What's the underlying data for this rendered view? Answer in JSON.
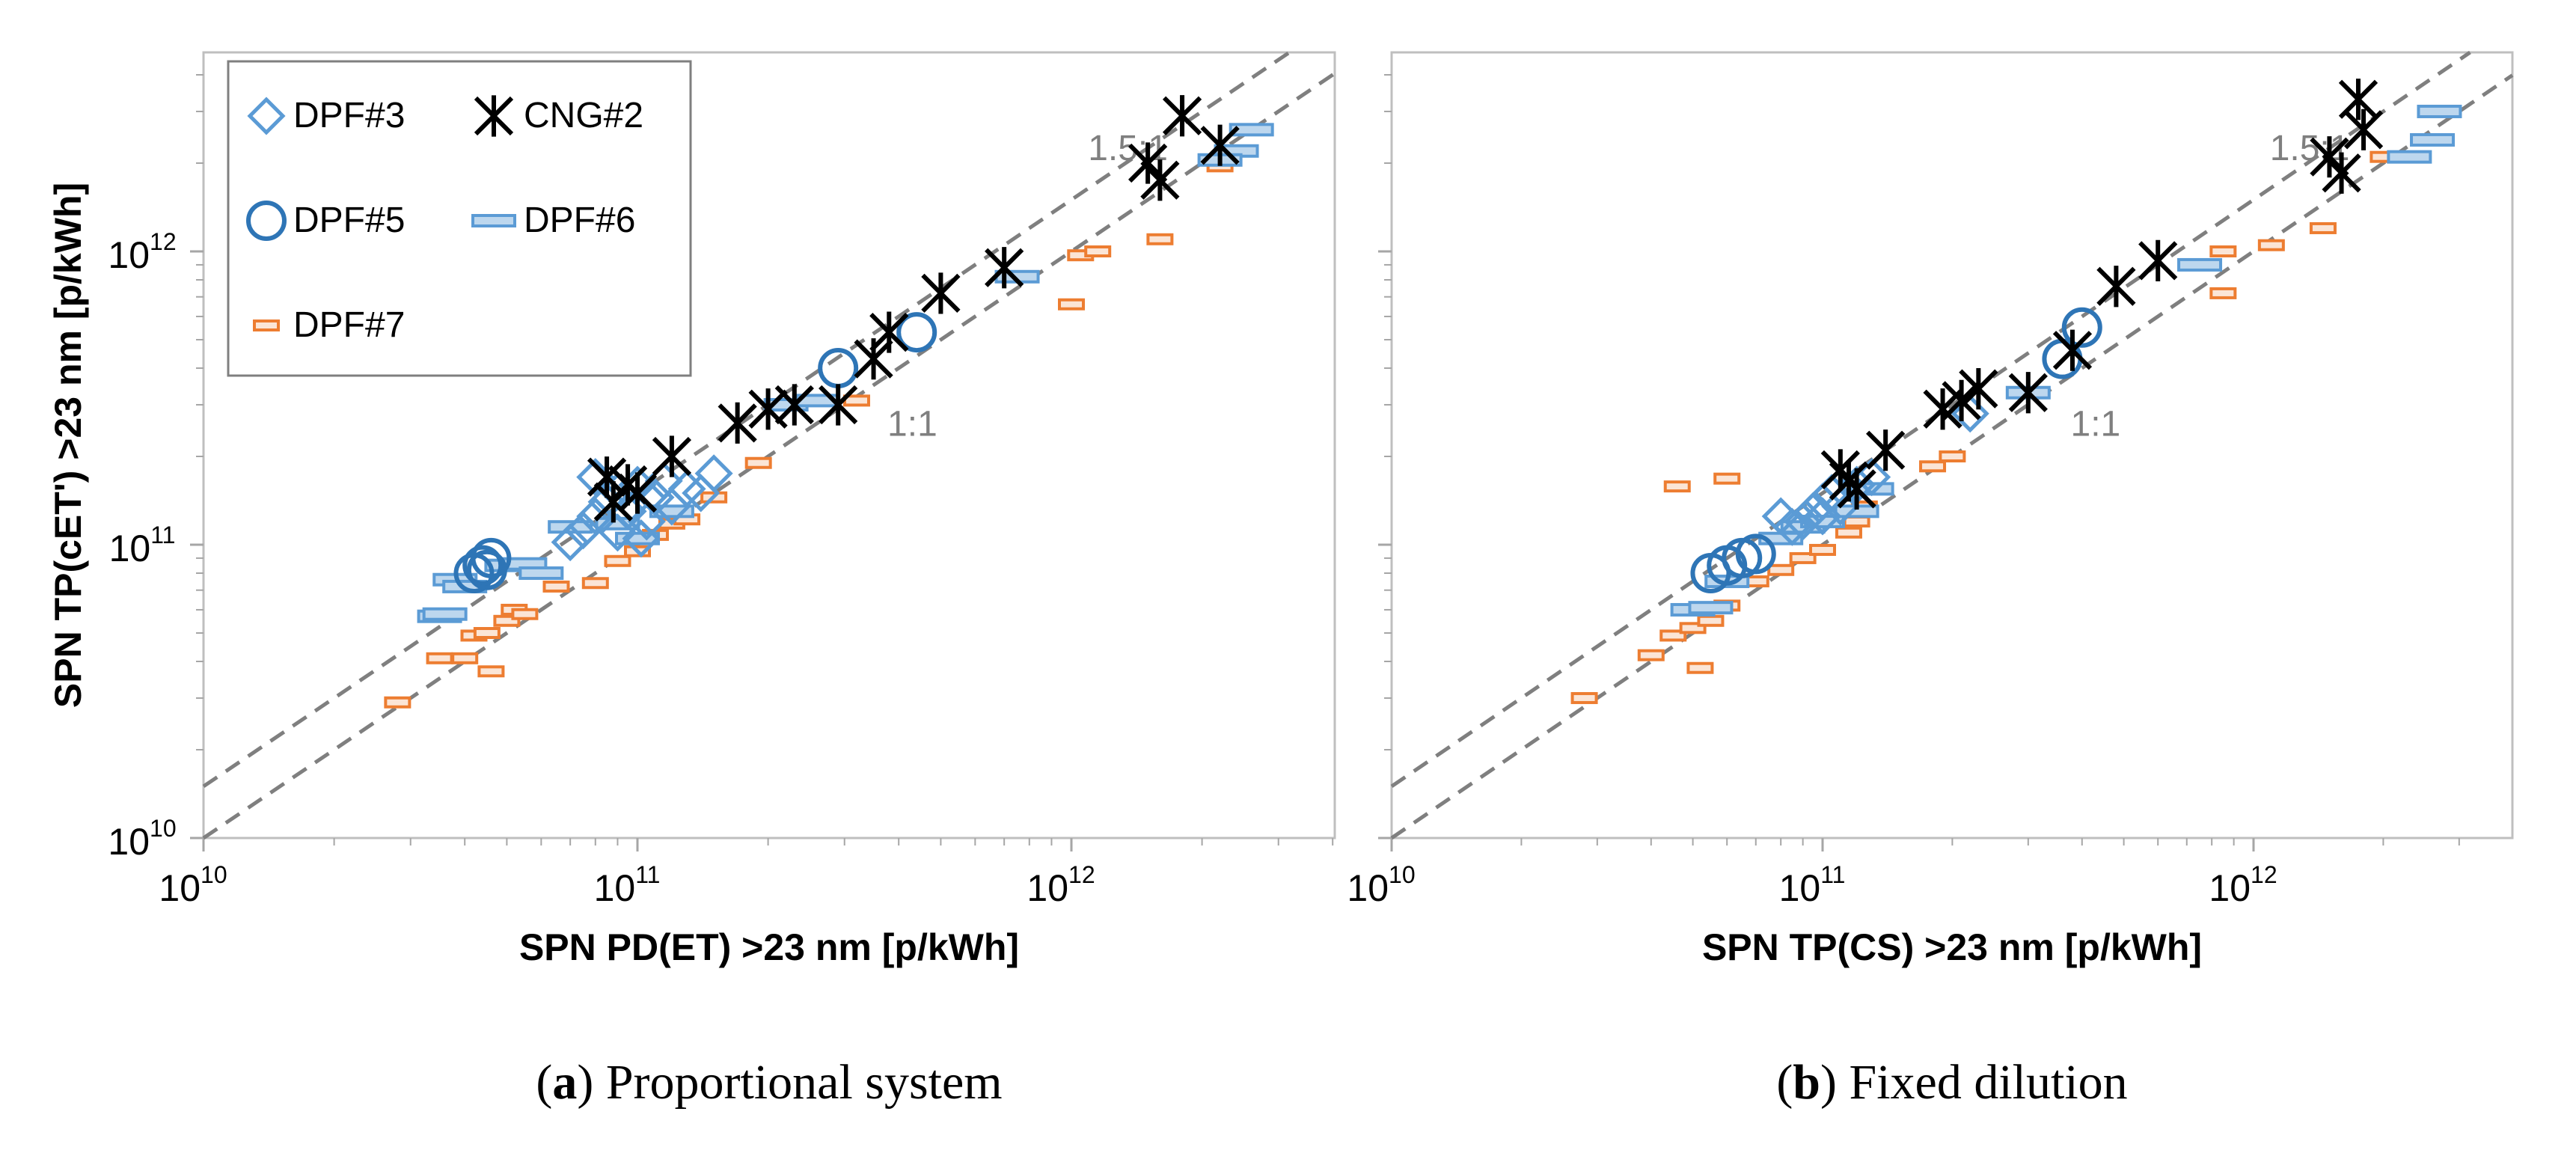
{
  "legend": {
    "items": [
      {
        "label": "DPF#3",
        "series": "DPF#3"
      },
      {
        "label": "CNG#2",
        "series": "CNG#2"
      },
      {
        "label": "DPF#5",
        "series": "DPF#5"
      },
      {
        "label": "DPF#6",
        "series": "DPF#6"
      },
      {
        "label": "DPF#7",
        "series": "DPF#7"
      }
    ]
  },
  "colors": {
    "DPF#3": "#5b9bd5",
    "DPF#5": "#2e75b6",
    "DPF#6": "#5b9bd5",
    "DPF#7": "#ed7d31",
    "CNG#2": "#000000",
    "reference": "#7f7f7f"
  },
  "reference_labels": {
    "r15": "1.5:1",
    "r1": "1:1"
  },
  "tick_base": "10",
  "chart_data": [
    {
      "type": "scatter",
      "panel": "a",
      "caption_letter": "a",
      "caption_text": "Proportional system",
      "xlabel": "SPN PD(ET) >23 nm [p/kWh]",
      "ylabel": "SPN TP(cET') >23 nm [p/kWh]",
      "xscale": "log",
      "yscale": "log",
      "xlim": [
        10000000000.0,
        4000000000000.0
      ],
      "ylim": [
        10000000000.0,
        5000000000000.0
      ],
      "xticks": [
        {
          "exp": "10",
          "value": 10000000000.0
        },
        {
          "exp": "11",
          "value": 100000000000.0
        },
        {
          "exp": "12",
          "value": 1000000000000.0
        }
      ],
      "yticks": [
        {
          "exp": "10",
          "value": 10000000000.0
        },
        {
          "exp": "11",
          "value": 100000000000.0
        },
        {
          "exp": "12",
          "value": 1000000000000.0
        }
      ],
      "reference_lines": [
        {
          "label": "1.5:1",
          "ratio": 1.5
        },
        {
          "label": "1:1",
          "ratio": 1.0
        }
      ],
      "series": [
        {
          "name": "DPF#3",
          "marker": "diamond",
          "points": [
            [
              70000000000.0,
              102000000000.0
            ],
            [
              75000000000.0,
              112000000000.0
            ],
            [
              80000000000.0,
              125000000000.0
            ],
            [
              85000000000.0,
              140000000000.0
            ],
            [
              90000000000.0,
              110000000000.0
            ],
            [
              95000000000.0,
              130000000000.0
            ],
            [
              100000000000.0,
              160000000000.0
            ],
            [
              105000000000.0,
              120000000000.0
            ],
            [
              110000000000.0,
              145000000000.0
            ],
            [
              120000000000.0,
              135000000000.0
            ],
            [
              130000000000.0,
              155000000000.0
            ],
            [
              140000000000.0,
              150000000000.0
            ],
            [
              150000000000.0,
              175000000000.0
            ],
            [
              80000000000.0,
              170000000000.0
            ],
            [
              90000000000.0,
              152000000000.0
            ],
            [
              102000000000.0,
              105000000000.0
            ],
            [
              115000000000.0,
              165000000000.0
            ]
          ]
        },
        {
          "name": "DPF#5",
          "marker": "circle",
          "points": [
            [
              42000000000.0,
              80000000000.0
            ],
            [
              44000000000.0,
              85000000000.0
            ],
            [
              46000000000.0,
              90000000000.0
            ],
            [
              45000000000.0,
              82000000000.0
            ],
            [
              290000000000.0,
              400000000000.0
            ],
            [
              440000000000.0,
              530000000000.0
            ]
          ]
        },
        {
          "name": "DPF#6",
          "marker": "dash",
          "points": [
            [
              35000000000.0,
              57000000000.0
            ],
            [
              36000000000.0,
              58000000000.0
            ],
            [
              38000000000.0,
              76000000000.0
            ],
            [
              40000000000.0,
              72000000000.0
            ],
            [
              50000000000.0,
              85000000000.0
            ],
            [
              55000000000.0,
              86000000000.0
            ],
            [
              60000000000.0,
              80000000000.0
            ],
            [
              70000000000.0,
              115000000000.0
            ],
            [
              90000000000.0,
              118000000000.0
            ],
            [
              100000000000.0,
              105000000000.0
            ],
            [
              120000000000.0,
              130000000000.0
            ],
            [
              220000000000.0,
              300000000000.0
            ],
            [
              260000000000.0,
              310000000000.0
            ],
            [
              750000000000.0,
              820000000000.0
            ],
            [
              2400000000000.0,
              2200000000000.0
            ],
            [
              2600000000000.0,
              2600000000000.0
            ],
            [
              2200000000000.0,
              2050000000000.0
            ]
          ]
        },
        {
          "name": "DPF#7",
          "marker": "bar",
          "points": [
            [
              28000000000.0,
              29000000000.0
            ],
            [
              35000000000.0,
              41000000000.0
            ],
            [
              40000000000.0,
              41000000000.0
            ],
            [
              42000000000.0,
              49000000000.0
            ],
            [
              45000000000.0,
              50000000000.0
            ],
            [
              46000000000.0,
              37000000000.0
            ],
            [
              50000000000.0,
              55000000000.0
            ],
            [
              52000000000.0,
              60000000000.0
            ],
            [
              55000000000.0,
              58000000000.0
            ],
            [
              65000000000.0,
              72000000000.0
            ],
            [
              80000000000.0,
              74000000000.0
            ],
            [
              90000000000.0,
              88000000000.0
            ],
            [
              100000000000.0,
              95000000000.0
            ],
            [
              110000000000.0,
              108000000000.0
            ],
            [
              120000000000.0,
              118000000000.0
            ],
            [
              130000000000.0,
              122000000000.0
            ],
            [
              150000000000.0,
              145000000000.0
            ],
            [
              190000000000.0,
              190000000000.0
            ],
            [
              320000000000.0,
              310000000000.0
            ],
            [
              1000000000000.0,
              660000000000.0
            ],
            [
              1050000000000.0,
              970000000000.0
            ],
            [
              1150000000000.0,
              1000000000000.0
            ],
            [
              1600000000000.0,
              1100000000000.0
            ],
            [
              2200000000000.0,
              1950000000000.0
            ]
          ]
        },
        {
          "name": "CNG#2",
          "marker": "asterisk",
          "points": [
            [
              85000000000.0,
              170000000000.0
            ],
            [
              88000000000.0,
              140000000000.0
            ],
            [
              95000000000.0,
              160000000000.0
            ],
            [
              100000000000.0,
              150000000000.0
            ],
            [
              120000000000.0,
              200000000000.0
            ],
            [
              170000000000.0,
              260000000000.0
            ],
            [
              200000000000.0,
              290000000000.0
            ],
            [
              230000000000.0,
              300000000000.0
            ],
            [
              290000000000.0,
              300000000000.0
            ],
            [
              350000000000.0,
              430000000000.0
            ],
            [
              380000000000.0,
              530000000000.0
            ],
            [
              500000000000.0,
              720000000000.0
            ],
            [
              700000000000.0,
              880000000000.0
            ],
            [
              1500000000000.0,
              2000000000000.0
            ],
            [
              1600000000000.0,
              1750000000000.0
            ],
            [
              1800000000000.0,
              2900000000000.0
            ],
            [
              2200000000000.0,
              2300000000000.0
            ]
          ]
        }
      ]
    },
    {
      "type": "scatter",
      "panel": "b",
      "caption_letter": "b",
      "caption_text": "Fixed dilution",
      "xlabel": "SPN TP(CS) >23 nm [p/kWh]",
      "ylabel": "",
      "xscale": "log",
      "yscale": "log",
      "xlim": [
        10000000000.0,
        4000000000000.0
      ],
      "ylim": [
        10000000000.0,
        5000000000000.0
      ],
      "xticks": [
        {
          "exp": "10",
          "value": 10000000000.0
        },
        {
          "exp": "11",
          "value": 100000000000.0
        },
        {
          "exp": "12",
          "value": 1000000000000.0
        }
      ],
      "yticks": [],
      "reference_lines": [
        {
          "label": "1.5:1",
          "ratio": 1.5
        },
        {
          "label": "1:1",
          "ratio": 1.0
        }
      ],
      "series": [
        {
          "name": "DPF#3",
          "marker": "diamond",
          "points": [
            [
              80000000000.0,
              125000000000.0
            ],
            [
              85000000000.0,
              115000000000.0
            ],
            [
              90000000000.0,
              120000000000.0
            ],
            [
              95000000000.0,
              130000000000.0
            ],
            [
              100000000000.0,
              140000000000.0
            ],
            [
              105000000000.0,
              150000000000.0
            ],
            [
              110000000000.0,
              135000000000.0
            ],
            [
              120000000000.0,
              160000000000.0
            ],
            [
              130000000000.0,
              170000000000.0
            ],
            [
              220000000000.0,
              280000000000.0
            ],
            [
              100000000000.0,
              125000000000.0
            ]
          ]
        },
        {
          "name": "DPF#5",
          "marker": "circle",
          "points": [
            [
              55000000000.0,
              80000000000.0
            ],
            [
              60000000000.0,
              85000000000.0
            ],
            [
              65000000000.0,
              90000000000.0
            ],
            [
              70000000000.0,
              93000000000.0
            ],
            [
              360000000000.0,
              430000000000.0
            ],
            [
              400000000000.0,
              550000000000.0
            ]
          ]
        },
        {
          "name": "DPF#6",
          "marker": "dash",
          "points": [
            [
              50000000000.0,
              60000000000.0
            ],
            [
              55000000000.0,
              61000000000.0
            ],
            [
              60000000000.0,
              75000000000.0
            ],
            [
              80000000000.0,
              105000000000.0
            ],
            [
              90000000000.0,
              115000000000.0
            ],
            [
              100000000000.0,
              120000000000.0
            ],
            [
              120000000000.0,
              130000000000.0
            ],
            [
              130000000000.0,
              155000000000.0
            ],
            [
              300000000000.0,
              330000000000.0
            ],
            [
              750000000000.0,
              900000000000.0
            ],
            [
              2300000000000.0,
              2100000000000.0
            ],
            [
              2600000000000.0,
              2400000000000.0
            ],
            [
              2700000000000.0,
              3000000000000.0
            ]
          ]
        },
        {
          "name": "DPF#7",
          "marker": "bar",
          "points": [
            [
              28000000000.0,
              30000000000.0
            ],
            [
              40000000000.0,
              42000000000.0
            ],
            [
              45000000000.0,
              49000000000.0
            ],
            [
              50000000000.0,
              52000000000.0
            ],
            [
              52000000000.0,
              38000000000.0
            ],
            [
              55000000000.0,
              55000000000.0
            ],
            [
              60000000000.0,
              62000000000.0
            ],
            [
              46000000000.0,
              158000000000.0
            ],
            [
              60000000000.0,
              168000000000.0
            ],
            [
              70000000000.0,
              75000000000.0
            ],
            [
              80000000000.0,
              82000000000.0
            ],
            [
              90000000000.0,
              90000000000.0
            ],
            [
              100000000000.0,
              96000000000.0
            ],
            [
              115000000000.0,
              110000000000.0
            ],
            [
              120000000000.0,
              120000000000.0
            ],
            [
              125000000000.0,
              135000000000.0
            ],
            [
              180000000000.0,
              185000000000.0
            ],
            [
              200000000000.0,
              200000000000.0
            ],
            [
              850000000000.0,
              720000000000.0
            ],
            [
              850000000000.0,
              1000000000000.0
            ],
            [
              1100000000000.0,
              1050000000000.0
            ],
            [
              1450000000000.0,
              1200000000000.0
            ],
            [
              2000000000000.0,
              2100000000000.0
            ]
          ]
        },
        {
          "name": "CNG#2",
          "marker": "asterisk",
          "points": [
            [
              110000000000.0,
              180000000000.0
            ],
            [
              115000000000.0,
              165000000000.0
            ],
            [
              120000000000.0,
              155000000000.0
            ],
            [
              140000000000.0,
              210000000000.0
            ],
            [
              190000000000.0,
              290000000000.0
            ],
            [
              210000000000.0,
              310000000000.0
            ],
            [
              230000000000.0,
              340000000000.0
            ],
            [
              300000000000.0,
              330000000000.0
            ],
            [
              380000000000.0,
              460000000000.0
            ],
            [
              480000000000.0,
              760000000000.0
            ],
            [
              600000000000.0,
              930000000000.0
            ],
            [
              1500000000000.0,
              2100000000000.0
            ],
            [
              1600000000000.0,
              1850000000000.0
            ],
            [
              1750000000000.0,
              3300000000000.0
            ],
            [
              1800000000000.0,
              2600000000000.0
            ]
          ]
        }
      ]
    }
  ]
}
